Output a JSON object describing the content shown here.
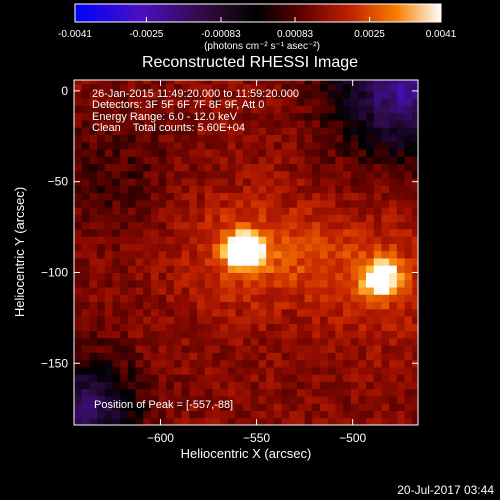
{
  "chart_data": {
    "type": "heatmap",
    "title": "Reconstructed RHESSI Image",
    "xlabel": "Heliocentric X (arcsec)",
    "ylabel": "Heliocentric Y (arcsec)",
    "xlim": [
      -645,
      -466
    ],
    "ylim": [
      -184,
      6
    ],
    "x_ticks": [
      -600,
      -550,
      -500
    ],
    "y_ticks": [
      0,
      -50,
      -100,
      -150
    ],
    "colorbar": {
      "min": -0.0041,
      "max": 0.0041,
      "tick_values": [
        -0.0041,
        -0.0025,
        -0.00083,
        0.00083,
        0.0025,
        0.0041
      ],
      "tick_labels": [
        "-0.0041",
        "-0.0025",
        "-0.00083",
        "0.00083",
        "0.0025",
        "0.0041"
      ],
      "unit_label": "(photons cm⁻² s⁻¹ asec⁻²)"
    },
    "sources": [
      {
        "x": -557,
        "y": -88,
        "peak": 0.0041
      },
      {
        "x": -485,
        "y": -103,
        "peak": 0.0037
      }
    ],
    "info_lines": [
      "26-Jan-2015 11:49:20.000 to 11:59:20.000",
      "Detectors: 3F 5F 6F 7F 8F 9F, Att 0",
      "Energy Range: 6.0 - 12.0 keV",
      "Clean    Total counts: 5.60E+04"
    ],
    "peak_label": "Position of Peak = [-557,-88]",
    "footer_date": "20-Jul-2017 03:44",
    "colormap": [
      "#0000ff",
      "#3a0fd0",
      "#7a1fa0",
      "#30103a",
      "#000000",
      "#3a0000",
      "#7a0c00",
      "#b82a00",
      "#e86a00",
      "#ffc040",
      "#ffffff"
    ]
  }
}
